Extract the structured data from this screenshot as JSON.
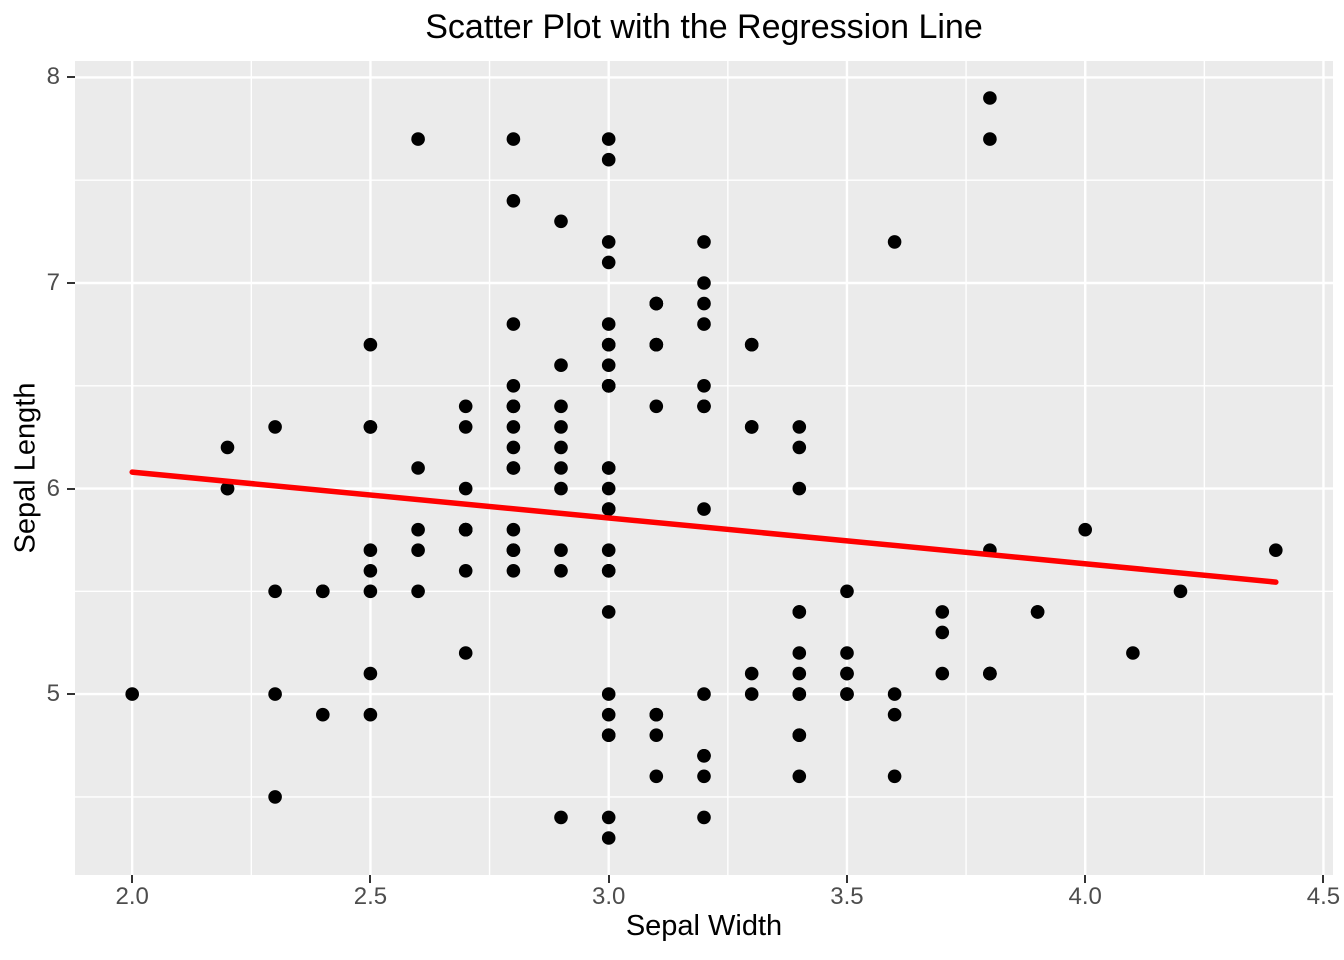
{
  "chart_data": {
    "type": "scatter",
    "title": "Scatter Plot with the Regression Line",
    "xlabel": "Sepal Width",
    "ylabel": "Sepal Length",
    "xlim": [
      1.88,
      4.52
    ],
    "ylim": [
      4.12,
      8.08
    ],
    "grid": true,
    "legend_position": "none",
    "x_ticks": {
      "values": [
        2.0,
        2.5,
        3.0,
        3.5,
        4.0,
        4.5
      ],
      "labels": [
        "2.0",
        "2.5",
        "3.0",
        "3.5",
        "4.0",
        "4.5"
      ]
    },
    "y_ticks": {
      "values": [
        5,
        6,
        7,
        8
      ],
      "labels": [
        "5",
        "6",
        "7",
        "8"
      ]
    },
    "x_minor": [
      2.25,
      2.75,
      3.25,
      3.75,
      4.25
    ],
    "y_minor": [
      4.5,
      5.5,
      6.5,
      7.5
    ],
    "panel_color": "#EBEBEB",
    "grid_color": "#FFFFFF",
    "tick_label_color": "#4D4D4D",
    "point_color": "#000000",
    "regression_line": {
      "type": "linear",
      "intercept": 6.526,
      "slope": -0.223,
      "x_start": 2.0,
      "x_end": 4.4,
      "color": "#FF0000"
    },
    "points": [
      [
        3.5,
        5.1
      ],
      [
        3.0,
        4.9
      ],
      [
        3.2,
        4.7
      ],
      [
        3.1,
        4.6
      ],
      [
        3.6,
        5.0
      ],
      [
        3.9,
        5.4
      ],
      [
        3.4,
        4.6
      ],
      [
        3.4,
        5.0
      ],
      [
        2.9,
        4.4
      ],
      [
        3.1,
        4.9
      ],
      [
        3.7,
        5.4
      ],
      [
        3.4,
        4.8
      ],
      [
        3.0,
        4.8
      ],
      [
        3.0,
        4.3
      ],
      [
        4.0,
        5.8
      ],
      [
        4.4,
        5.7
      ],
      [
        3.9,
        5.4
      ],
      [
        3.5,
        5.1
      ],
      [
        3.8,
        5.7
      ],
      [
        3.8,
        5.1
      ],
      [
        3.4,
        5.4
      ],
      [
        3.7,
        5.1
      ],
      [
        3.6,
        4.6
      ],
      [
        3.3,
        5.1
      ],
      [
        3.4,
        4.8
      ],
      [
        3.0,
        5.0
      ],
      [
        3.4,
        5.0
      ],
      [
        3.5,
        5.2
      ],
      [
        3.4,
        5.2
      ],
      [
        3.2,
        4.7
      ],
      [
        3.1,
        4.8
      ],
      [
        3.4,
        5.4
      ],
      [
        4.1,
        5.2
      ],
      [
        4.2,
        5.5
      ],
      [
        3.1,
        4.9
      ],
      [
        3.2,
        5.0
      ],
      [
        3.5,
        5.5
      ],
      [
        3.6,
        4.9
      ],
      [
        3.0,
        4.4
      ],
      [
        3.4,
        5.1
      ],
      [
        3.5,
        5.0
      ],
      [
        2.3,
        4.5
      ],
      [
        3.2,
        4.4
      ],
      [
        3.5,
        5.0
      ],
      [
        3.8,
        5.1
      ],
      [
        3.0,
        4.8
      ],
      [
        3.8,
        5.1
      ],
      [
        3.2,
        4.6
      ],
      [
        3.7,
        5.3
      ],
      [
        3.3,
        5.0
      ],
      [
        3.2,
        7.0
      ],
      [
        3.2,
        6.4
      ],
      [
        3.1,
        6.9
      ],
      [
        2.3,
        5.5
      ],
      [
        2.8,
        6.5
      ],
      [
        2.8,
        5.7
      ],
      [
        3.3,
        6.3
      ],
      [
        2.4,
        4.9
      ],
      [
        2.9,
        6.6
      ],
      [
        2.7,
        5.2
      ],
      [
        2.0,
        5.0
      ],
      [
        3.0,
        5.9
      ],
      [
        2.2,
        6.0
      ],
      [
        2.9,
        6.1
      ],
      [
        2.9,
        5.6
      ],
      [
        3.1,
        6.7
      ],
      [
        3.0,
        5.6
      ],
      [
        2.7,
        5.8
      ],
      [
        2.2,
        6.2
      ],
      [
        2.5,
        5.6
      ],
      [
        3.2,
        5.9
      ],
      [
        2.8,
        6.1
      ],
      [
        2.5,
        6.3
      ],
      [
        2.8,
        6.1
      ],
      [
        2.9,
        6.4
      ],
      [
        3.0,
        6.6
      ],
      [
        2.8,
        6.8
      ],
      [
        3.0,
        6.7
      ],
      [
        2.9,
        6.0
      ],
      [
        2.6,
        5.7
      ],
      [
        2.4,
        5.5
      ],
      [
        2.4,
        5.5
      ],
      [
        2.7,
        5.8
      ],
      [
        2.7,
        6.0
      ],
      [
        3.0,
        5.4
      ],
      [
        3.4,
        6.0
      ],
      [
        3.1,
        6.7
      ],
      [
        2.3,
        6.3
      ],
      [
        3.0,
        5.6
      ],
      [
        2.5,
        5.5
      ],
      [
        2.6,
        5.5
      ],
      [
        3.0,
        6.1
      ],
      [
        2.6,
        5.8
      ],
      [
        2.3,
        5.0
      ],
      [
        2.7,
        5.6
      ],
      [
        3.0,
        5.7
      ],
      [
        2.9,
        5.7
      ],
      [
        2.9,
        6.2
      ],
      [
        2.5,
        5.1
      ],
      [
        2.8,
        5.7
      ],
      [
        3.3,
        6.3
      ],
      [
        2.7,
        5.8
      ],
      [
        3.0,
        7.1
      ],
      [
        2.9,
        6.3
      ],
      [
        3.0,
        6.5
      ],
      [
        3.0,
        7.6
      ],
      [
        2.5,
        4.9
      ],
      [
        2.9,
        7.3
      ],
      [
        2.5,
        6.7
      ],
      [
        3.6,
        7.2
      ],
      [
        3.2,
        6.5
      ],
      [
        2.7,
        6.4
      ],
      [
        3.0,
        6.8
      ],
      [
        2.5,
        5.7
      ],
      [
        2.8,
        5.8
      ],
      [
        3.2,
        6.4
      ],
      [
        3.0,
        6.5
      ],
      [
        3.8,
        7.7
      ],
      [
        2.6,
        7.7
      ],
      [
        2.2,
        6.0
      ],
      [
        3.2,
        6.9
      ],
      [
        2.8,
        5.6
      ],
      [
        2.8,
        7.7
      ],
      [
        2.7,
        6.3
      ],
      [
        3.3,
        6.7
      ],
      [
        3.2,
        7.2
      ],
      [
        2.8,
        6.2
      ],
      [
        3.0,
        6.1
      ],
      [
        2.8,
        6.4
      ],
      [
        3.0,
        7.2
      ],
      [
        2.8,
        7.4
      ],
      [
        3.8,
        7.9
      ],
      [
        2.8,
        6.4
      ],
      [
        2.8,
        6.3
      ],
      [
        2.6,
        6.1
      ],
      [
        3.0,
        7.7
      ],
      [
        3.4,
        6.3
      ],
      [
        3.1,
        6.4
      ],
      [
        3.0,
        6.0
      ],
      [
        3.1,
        6.9
      ],
      [
        3.1,
        6.7
      ],
      [
        3.1,
        6.9
      ],
      [
        2.7,
        5.8
      ],
      [
        3.2,
        6.8
      ],
      [
        3.3,
        6.7
      ],
      [
        3.0,
        6.7
      ],
      [
        2.5,
        6.3
      ],
      [
        3.0,
        6.5
      ],
      [
        3.4,
        6.2
      ],
      [
        3.0,
        5.9
      ]
    ]
  }
}
